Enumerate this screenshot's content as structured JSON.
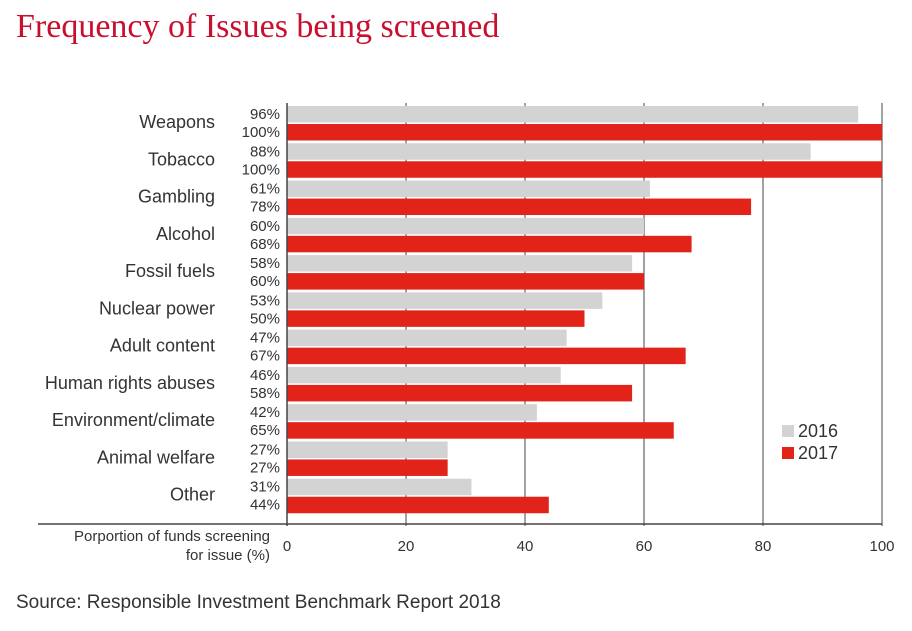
{
  "title": "Frequency of Issues being screened",
  "source": "Source:  Responsible Investment Benchmark Report 2018",
  "chart_data": {
    "type": "bar",
    "orientation": "horizontal",
    "title": "Frequency of Issues being screened",
    "xlabel": "Porportion of funds screening for issue (%)",
    "xlabel_lines": [
      "Porportion of funds screening",
      "for issue (%)"
    ],
    "xlim": [
      0,
      100
    ],
    "xticks": [
      0,
      20,
      40,
      60,
      80,
      100
    ],
    "grid": "vertical",
    "legend_position": "right",
    "categories": [
      "Weapons",
      "Tobacco",
      "Gambling",
      "Alcohol",
      "Fossil fuels",
      "Nuclear power",
      "Adult content",
      "Human rights abuses",
      "Environment/climate",
      "Animal welfare",
      "Other"
    ],
    "series": [
      {
        "name": "2016",
        "color": "#d3d3d3",
        "values": [
          96,
          88,
          61,
          60,
          58,
          53,
          47,
          46,
          42,
          27,
          31
        ],
        "labels": [
          "96%",
          "88%",
          "61%",
          "60%",
          "58%",
          "53%",
          "47%",
          "46%",
          "42%",
          "27%",
          "31%"
        ]
      },
      {
        "name": "2017",
        "color": "#e2231a",
        "values": [
          100,
          100,
          78,
          68,
          60,
          50,
          67,
          58,
          65,
          27,
          44
        ],
        "labels": [
          "100%",
          "100%",
          "78%",
          "68%",
          "60%",
          "50%",
          "67%",
          "58%",
          "65%",
          "27%",
          "44%"
        ]
      }
    ]
  }
}
